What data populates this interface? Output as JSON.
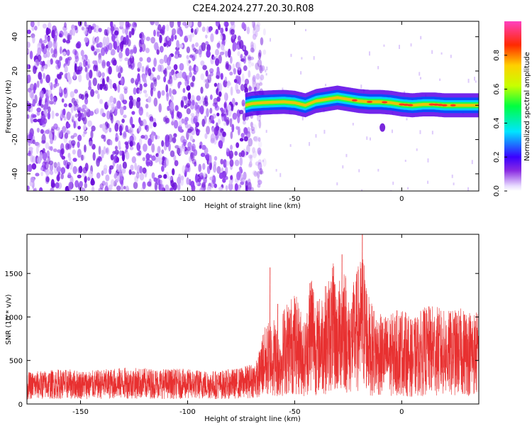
{
  "title": "C2E4.2024.277.20.30.R08",
  "chart_data": [
    {
      "type": "heatmap",
      "xlabel": "Height of straight line (km)",
      "ylabel": "Frequency (Hz)",
      "xlim": [
        -175,
        36
      ],
      "ylim": [
        -50,
        49
      ],
      "xticks": [
        -150,
        -100,
        -50,
        0
      ],
      "yticks": [
        -40,
        -20,
        0,
        20,
        40
      ],
      "noise_region_x": [
        -175,
        -66
      ],
      "ridge_x": [
        -73,
        -70,
        -65,
        -60,
        -55,
        -50,
        -45,
        -40,
        -35,
        -30,
        -25,
        -20,
        -15,
        -10,
        -5,
        0,
        5,
        10,
        15,
        20,
        25,
        30,
        36
      ],
      "ridge_freq": [
        0,
        1,
        1.5,
        1.8,
        2,
        1.5,
        0,
        2.5,
        3.5,
        4.5,
        3.5,
        2.5,
        2,
        2,
        1.5,
        0.5,
        0,
        0.5,
        0.5,
        0,
        0,
        0,
        0
      ],
      "isolated_blob": {
        "x": -9,
        "freq": -13
      },
      "colorbar": {
        "label": "Normalized spectral amplitude",
        "range": [
          0,
          1
        ],
        "ticks": [
          "0.0",
          "0.2",
          "0.4",
          "0.6",
          "0.8"
        ]
      }
    },
    {
      "type": "line",
      "xlabel": "Height of straight line (km)",
      "ylabel": "SNR (10 * v/v)",
      "xlim": [
        -175,
        36
      ],
      "ylim": [
        0,
        1950
      ],
      "xticks": [
        -150,
        -100,
        -50,
        0
      ],
      "yticks": [
        0,
        500,
        1000,
        1500
      ],
      "color": "#e83030",
      "x": [
        -175,
        -160,
        -145,
        -130,
        -115,
        -100,
        -85,
        -75,
        -70,
        -67,
        -65,
        -62,
        -60,
        -57,
        -55,
        -50,
        -45,
        -42,
        -40,
        -35,
        -32,
        -30,
        -27,
        -25,
        -20,
        -18,
        -15,
        -10,
        -5,
        0,
        5,
        10,
        15,
        20,
        25,
        30,
        36
      ],
      "y": [
        210,
        230,
        220,
        240,
        235,
        230,
        220,
        240,
        270,
        300,
        460,
        520,
        560,
        430,
        620,
        700,
        520,
        900,
        640,
        760,
        880,
        700,
        960,
        650,
        880,
        960,
        640,
        560,
        560,
        610,
        520,
        600,
        620,
        580,
        590,
        600,
        580
      ],
      "peaks": [
        {
          "x": -61.6,
          "y": 1570
        },
        {
          "x": -58,
          "y": 1150
        },
        {
          "x": -43,
          "y": 1390
        },
        {
          "x": -32,
          "y": 1550
        },
        {
          "x": -28,
          "y": 1720
        },
        {
          "x": -18.5,
          "y": 1950
        }
      ]
    }
  ]
}
